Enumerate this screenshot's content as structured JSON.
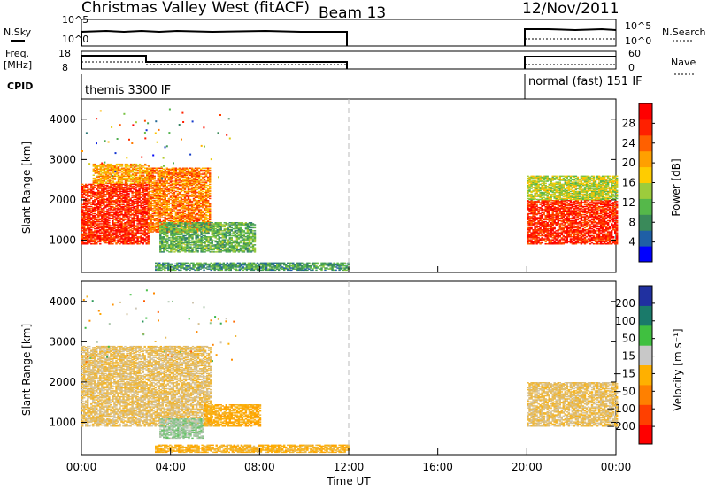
{
  "header": {
    "title": "Christmas Valley West (fitACF)",
    "beam": "Beam 13",
    "date": "12/Nov/2011"
  },
  "panels": {
    "nsky_label": "N.Sky",
    "freq_label_line1": "Freq.",
    "freq_label_line2": "[MHz]",
    "cpid_label": "CPID",
    "nsearch_label": "N.Search",
    "nave_label": "Nave",
    "nsky_left_ticks": [
      "10^5",
      "10^0"
    ],
    "nsky_right_ticks": [
      "10^5",
      "10^0"
    ],
    "freq_left_ticks": [
      "18",
      "8"
    ],
    "freq_right_ticks": [
      "60",
      "0"
    ],
    "cpid_segments": [
      {
        "label": "themis 3300 IF",
        "start": "00:00",
        "end": "12:00"
      },
      {
        "label": "normal (fast) 151 IF",
        "start": "20:00",
        "end": "00:00"
      }
    ]
  },
  "chart_data": [
    {
      "type": "heatmap",
      "panel": "power",
      "xlabel": "",
      "ylabel": "Slant Range [km]",
      "x_ticks": [
        "00:00",
        "04:00",
        "08:00",
        "12:00",
        "16:00",
        "20:00",
        "00:00"
      ],
      "xlim_hours": [
        0,
        24
      ],
      "ylim": [
        200,
        4500
      ],
      "y_ticks": [
        1000,
        2000,
        3000,
        4000
      ],
      "colorbar": {
        "label": "Power [dB]",
        "range": [
          0,
          30
        ],
        "ticks": [
          "4",
          "8",
          "12",
          "16",
          "20",
          "24",
          "28"
        ],
        "colors": [
          "#0000ff",
          "#1f5fa6",
          "#3a8a5a",
          "#55b84a",
          "#9ccc3c",
          "#ffcc00",
          "#ffa000",
          "#ff6000",
          "#ff2000",
          "#ff0000"
        ]
      },
      "regions": [
        {
          "t0": 0,
          "t1": 3,
          "r0": 900,
          "r1": 2400,
          "value": 27
        },
        {
          "t0": 0.5,
          "t1": 3,
          "r0": 2400,
          "r1": 2900,
          "value": 20
        },
        {
          "t0": 3,
          "t1": 5.8,
          "r0": 1200,
          "r1": 2800,
          "value": 22
        },
        {
          "t0": 3.5,
          "t1": 7.8,
          "r0": 700,
          "r1": 1450,
          "value": 10
        },
        {
          "t0": 3.3,
          "t1": 12,
          "r0": 250,
          "r1": 450,
          "value": 8
        },
        {
          "t0": 20,
          "t1": 24,
          "r0": 900,
          "r1": 2000,
          "value": 27
        },
        {
          "t0": 20,
          "t1": 24,
          "r0": 2000,
          "r1": 2600,
          "value": 14
        }
      ],
      "gap_hours": [
        12,
        20
      ]
    },
    {
      "type": "heatmap",
      "panel": "velocity",
      "xlabel": "Time UT",
      "ylabel": "Slant Range [km]",
      "x_ticks": [
        "00:00",
        "04:00",
        "08:00",
        "12:00",
        "16:00",
        "20:00",
        "00:00"
      ],
      "xlim_hours": [
        0,
        24
      ],
      "ylim": [
        200,
        4500
      ],
      "y_ticks": [
        1000,
        2000,
        3000,
        4000
      ],
      "colorbar": {
        "label": "Velocity [m s⁻¹]",
        "range": [
          -250,
          250
        ],
        "ticks": [
          "200",
          "100",
          "50",
          "15",
          "−15",
          "−50",
          "−100",
          "−200"
        ],
        "colors": [
          "#2030a0",
          "#1a7a6a",
          "#40c040",
          "#c8c8c8",
          "#ffb000",
          "#ff8000",
          "#ff4000",
          "#ff0000"
        ]
      },
      "regions": [
        {
          "t0": 0,
          "t1": 5.8,
          "r0": 900,
          "r1": 2900,
          "value": 0
        },
        {
          "t0": 3.5,
          "t1": 5.5,
          "r0": 600,
          "r1": 1100,
          "value": 60
        },
        {
          "t0": 5.5,
          "t1": 8,
          "r0": 900,
          "r1": 1450,
          "value": -40
        },
        {
          "t0": 3.3,
          "t1": 12,
          "r0": 250,
          "r1": 450,
          "value": -30
        },
        {
          "t0": 20,
          "t1": 24,
          "r0": 900,
          "r1": 2000,
          "value": 0
        }
      ],
      "gap_hours": [
        12,
        20
      ]
    }
  ]
}
